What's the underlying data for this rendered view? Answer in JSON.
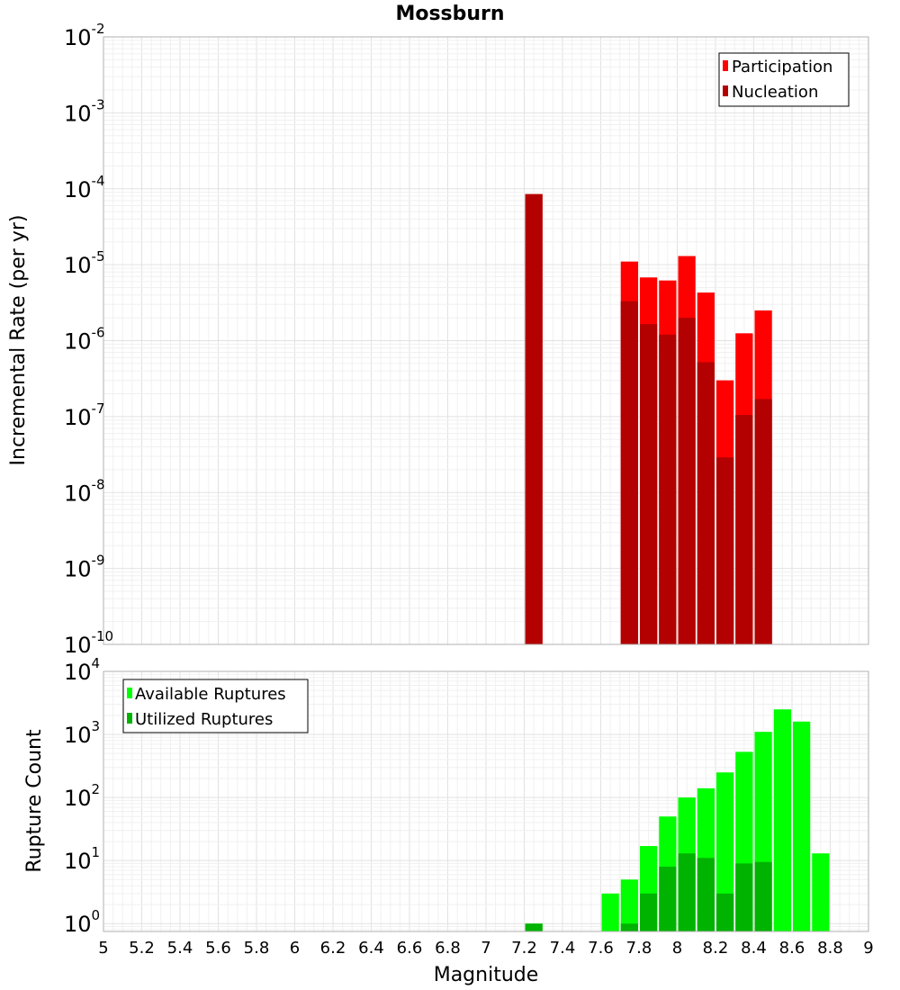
{
  "chart_data": [
    {
      "type": "bar",
      "title": "Mossburn",
      "xlabel": "",
      "ylabel": "Incremental Rate (per yr)",
      "y_scale": "log",
      "ylim": [
        1e-10,
        0.01
      ],
      "y_ticks": [
        {
          "base": "10",
          "exp": "-10"
        },
        {
          "base": "10",
          "exp": "-9"
        },
        {
          "base": "10",
          "exp": "-8"
        },
        {
          "base": "10",
          "exp": "-7"
        },
        {
          "base": "10",
          "exp": "-6"
        },
        {
          "base": "10",
          "exp": "-5"
        },
        {
          "base": "10",
          "exp": "-4"
        },
        {
          "base": "10",
          "exp": "-3"
        },
        {
          "base": "10",
          "exp": "-2"
        }
      ],
      "xlim": [
        5,
        9
      ],
      "grid": true,
      "legend_position": "top-right",
      "bar_width": 0.1,
      "series": [
        {
          "name": "Participation",
          "color": "#ff0000",
          "x": [
            7.25,
            7.75,
            7.85,
            7.95,
            8.05,
            8.15,
            8.25,
            8.35,
            8.45
          ],
          "values": [
            8.5e-05,
            1.1e-05,
            6.8e-06,
            6.2e-06,
            1.3e-05,
            4.3e-06,
            3e-07,
            1.25e-06,
            2.5e-06
          ]
        },
        {
          "name": "Nucleation",
          "color": "#b30000",
          "x": [
            7.25,
            7.75,
            7.85,
            7.95,
            8.05,
            8.15,
            8.25,
            8.35,
            8.45
          ],
          "values": [
            8.5e-05,
            3.3e-06,
            1.65e-06,
            1.2e-06,
            2e-06,
            5.2e-07,
            2.9e-08,
            1.05e-07,
            1.7e-07
          ]
        }
      ]
    },
    {
      "type": "bar",
      "title": "",
      "xlabel": "Magnitude",
      "ylabel": "Rupture Count",
      "y_scale": "log",
      "ylim": [
        0.75,
        10000
      ],
      "y_ticks": [
        {
          "base": "10",
          "exp": "0"
        },
        {
          "base": "10",
          "exp": "1"
        },
        {
          "base": "10",
          "exp": "2"
        },
        {
          "base": "10",
          "exp": "3"
        },
        {
          "base": "10",
          "exp": "4"
        }
      ],
      "xlim": [
        5,
        9
      ],
      "x_ticks": [
        "5",
        "5.2",
        "5.4",
        "5.6",
        "5.8",
        "6",
        "6.2",
        "6.4",
        "6.6",
        "6.8",
        "7",
        "7.2",
        "7.4",
        "7.6",
        "7.8",
        "8",
        "8.2",
        "8.4",
        "8.6",
        "8.8",
        "9"
      ],
      "grid": true,
      "legend_position": "top-left",
      "bar_width": 0.1,
      "series": [
        {
          "name": "Available Ruptures",
          "color": "#00ff00",
          "x": [
            7.25,
            7.65,
            7.75,
            7.85,
            7.95,
            8.05,
            8.15,
            8.25,
            8.35,
            8.45,
            8.55,
            8.65,
            8.75
          ],
          "values": [
            1,
            3,
            5,
            17,
            50,
            100,
            140,
            250,
            530,
            1100,
            2500,
            1600,
            13
          ]
        },
        {
          "name": "Utilized Ruptures",
          "color": "#00b300",
          "x": [
            7.25,
            7.75,
            7.85,
            7.95,
            8.05,
            8.15,
            8.25,
            8.35,
            8.45
          ],
          "values": [
            1,
            1,
            3,
            8,
            13,
            11,
            3,
            9,
            9.5
          ]
        }
      ]
    }
  ]
}
